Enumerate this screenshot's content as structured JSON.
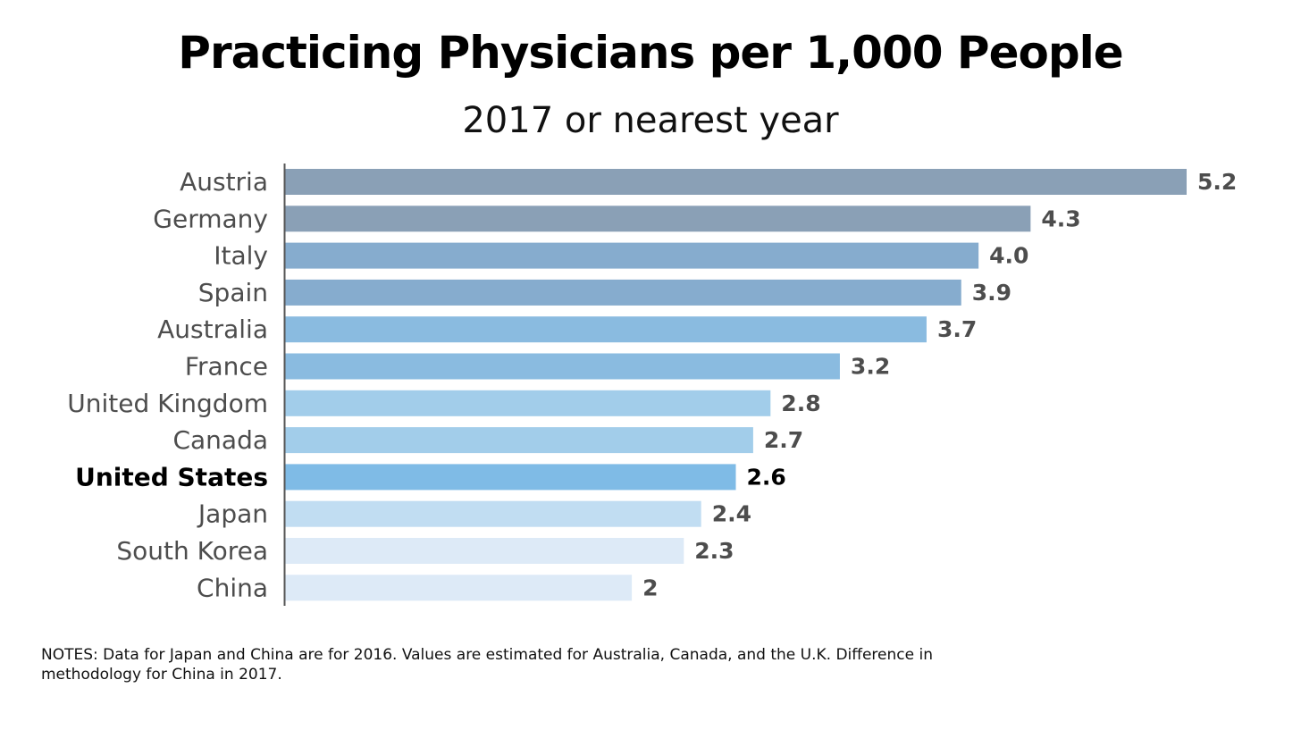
{
  "chart_data": {
    "type": "bar",
    "orientation": "horizontal",
    "title": "Practicing Physicians per 1,000 People",
    "subtitle": "2017 or nearest year",
    "categories": [
      "Austria",
      "Germany",
      "Italy",
      "Spain",
      "Australia",
      "France",
      "United Kingdom",
      "Canada",
      "United States",
      "Japan",
      "South Korea",
      "China"
    ],
    "values": [
      5.2,
      4.3,
      4.0,
      3.9,
      3.7,
      3.2,
      2.8,
      2.7,
      2.6,
      2.4,
      2.3,
      2
    ],
    "value_labels": [
      "5.2",
      "4.3",
      "4.0",
      "3.9",
      "3.7",
      "3.2",
      "2.8",
      "2.7",
      "2.6",
      "2.4",
      "2.3",
      "2"
    ],
    "bar_colors": [
      "#8aa0b6",
      "#8aa0b6",
      "#86acce",
      "#86acce",
      "#8abbe0",
      "#8abbe0",
      "#a2cdea",
      "#a2cdea",
      "#7fbbe6",
      "#c1ddf2",
      "#ddeaf7",
      "#ddeaf7"
    ],
    "highlight": "United States",
    "xlim": [
      0,
      5.2
    ],
    "grid": false,
    "legend": "none"
  },
  "colors": {
    "label": "#4d4d4d",
    "value_label": "#4d4d4d",
    "highlight_text": "#000000",
    "axis": "#555555"
  },
  "notes": "NOTES: Data for Japan and China are for 2016. Values are estimated for Australia, Canada, and the U.K. Difference in methodology for China in 2017."
}
